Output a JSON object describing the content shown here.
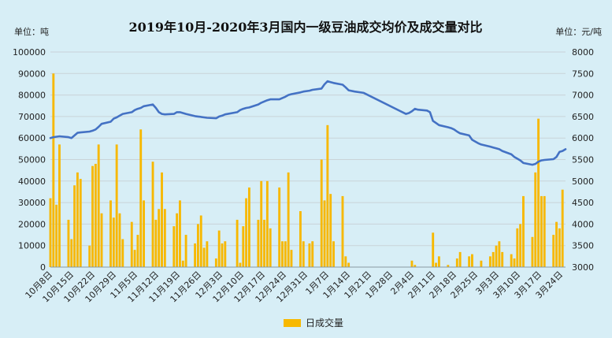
{
  "chart_data": {
    "type": "bar+line",
    "title": "2019年10月-2020年3月国内一级豆油成交均价及成交量对比",
    "left_unit": "单位：吨",
    "right_unit": "单位：元/吨",
    "left_axis": {
      "min": 0,
      "max": 100000,
      "ticks": [
        "0",
        "10000",
        "20000",
        "30000",
        "40000",
        "50000",
        "60000",
        "70000",
        "80000",
        "90000",
        "100000"
      ]
    },
    "right_axis": {
      "min": 3000,
      "max": 8000,
      "ticks": [
        "3000",
        "3500",
        "4000",
        "4500",
        "5000",
        "5500",
        "6000",
        "6500",
        "7000",
        "7500",
        "8000"
      ]
    },
    "x_start": "2019-10-08",
    "x_end": "2020-03-27",
    "x_ticks": [
      "10月8日",
      "10月15日",
      "10月22日",
      "10月29日",
      "11月5日",
      "11月12日",
      "11月19日",
      "11月26日",
      "12月3日",
      "12月10日",
      "12月17日",
      "12月24日",
      "12月31日",
      "1月7日",
      "1月14日",
      "1月21日",
      "1月28日",
      "2月4日",
      "2月11日",
      "2月18日",
      "2月25日",
      "3月3日",
      "3月10日",
      "3月17日",
      "3月24日"
    ],
    "grid": true,
    "legend_position": "bottom-center",
    "series": [
      {
        "name": "日成交量",
        "kind": "bar",
        "axis": "left",
        "color": "#f7b800",
        "points": [
          [
            "2019-10-08",
            32000
          ],
          [
            "2019-10-09",
            90000
          ],
          [
            "2019-10-10",
            29000
          ],
          [
            "2019-10-11",
            57000
          ],
          [
            "2019-10-14",
            22000
          ],
          [
            "2019-10-15",
            13000
          ],
          [
            "2019-10-16",
            38000
          ],
          [
            "2019-10-17",
            44000
          ],
          [
            "2019-10-18",
            41000
          ],
          [
            "2019-10-21",
            10000
          ],
          [
            "2019-10-22",
            47000
          ],
          [
            "2019-10-23",
            48000
          ],
          [
            "2019-10-24",
            57000
          ],
          [
            "2019-10-25",
            25000
          ],
          [
            "2019-10-28",
            31000
          ],
          [
            "2019-10-29",
            23000
          ],
          [
            "2019-10-30",
            57000
          ],
          [
            "2019-10-31",
            25000
          ],
          [
            "2019-11-01",
            13000
          ],
          [
            "2019-11-04",
            21000
          ],
          [
            "2019-11-05",
            8000
          ],
          [
            "2019-11-06",
            15000
          ],
          [
            "2019-11-07",
            64000
          ],
          [
            "2019-11-08",
            31000
          ],
          [
            "2019-11-11",
            49000
          ],
          [
            "2019-11-12",
            22000
          ],
          [
            "2019-11-13",
            27000
          ],
          [
            "2019-11-14",
            44000
          ],
          [
            "2019-11-15",
            27000
          ],
          [
            "2019-11-18",
            19000
          ],
          [
            "2019-11-19",
            25000
          ],
          [
            "2019-11-20",
            31000
          ],
          [
            "2019-11-21",
            3000
          ],
          [
            "2019-11-22",
            15000
          ],
          [
            "2019-11-25",
            11000
          ],
          [
            "2019-11-26",
            20000
          ],
          [
            "2019-11-27",
            24000
          ],
          [
            "2019-11-28",
            9000
          ],
          [
            "2019-11-29",
            12000
          ],
          [
            "2019-12-02",
            4000
          ],
          [
            "2019-12-03",
            17000
          ],
          [
            "2019-12-04",
            11000
          ],
          [
            "2019-12-05",
            12000
          ],
          [
            "2019-12-09",
            22000
          ],
          [
            "2019-12-10",
            2000
          ],
          [
            "2019-12-11",
            19000
          ],
          [
            "2019-12-12",
            32000
          ],
          [
            "2019-12-13",
            37000
          ],
          [
            "2019-12-16",
            22000
          ],
          [
            "2019-12-17",
            40000
          ],
          [
            "2019-12-18",
            22000
          ],
          [
            "2019-12-19",
            40000
          ],
          [
            "2019-12-20",
            18000
          ],
          [
            "2019-12-23",
            37000
          ],
          [
            "2019-12-24",
            12000
          ],
          [
            "2019-12-25",
            12000
          ],
          [
            "2019-12-26",
            44000
          ],
          [
            "2019-12-27",
            8000
          ],
          [
            "2019-12-30",
            26000
          ],
          [
            "2019-12-31",
            12000
          ],
          [
            "2020-01-02",
            11000
          ],
          [
            "2020-01-03",
            12000
          ],
          [
            "2020-01-06",
            50000
          ],
          [
            "2020-01-07",
            31000
          ],
          [
            "2020-01-08",
            66000
          ],
          [
            "2020-01-09",
            34000
          ],
          [
            "2020-01-10",
            12000
          ],
          [
            "2020-01-13",
            33000
          ],
          [
            "2020-01-14",
            5000
          ],
          [
            "2020-01-15",
            2000
          ],
          [
            "2020-02-05",
            3000
          ],
          [
            "2020-02-06",
            1000
          ],
          [
            "2020-02-12",
            16000
          ],
          [
            "2020-02-13",
            2000
          ],
          [
            "2020-02-14",
            5000
          ],
          [
            "2020-02-17",
            1000
          ],
          [
            "2020-02-20",
            4000
          ],
          [
            "2020-02-21",
            7000
          ],
          [
            "2020-02-24",
            5000
          ],
          [
            "2020-02-25",
            6000
          ],
          [
            "2020-02-28",
            3000
          ],
          [
            "2020-03-02",
            5000
          ],
          [
            "2020-03-03",
            7000
          ],
          [
            "2020-03-04",
            10000
          ],
          [
            "2020-03-05",
            12000
          ],
          [
            "2020-03-06",
            7000
          ],
          [
            "2020-03-09",
            6000
          ],
          [
            "2020-03-10",
            4000
          ],
          [
            "2020-03-11",
            18000
          ],
          [
            "2020-03-12",
            20000
          ],
          [
            "2020-03-13",
            33000
          ],
          [
            "2020-03-16",
            14000
          ],
          [
            "2020-03-17",
            44000
          ],
          [
            "2020-03-18",
            69000
          ],
          [
            "2020-03-19",
            33000
          ],
          [
            "2020-03-20",
            33000
          ],
          [
            "2020-03-23",
            15000
          ],
          [
            "2020-03-24",
            21000
          ],
          [
            "2020-03-25",
            18000
          ],
          [
            "2020-03-26",
            36000
          ]
        ]
      },
      {
        "kind": "line",
        "axis": "right",
        "color": "#4472c4",
        "points": [
          [
            "2019-10-08",
            6000
          ],
          [
            "2019-10-09",
            6020
          ],
          [
            "2019-10-11",
            6040
          ],
          [
            "2019-10-14",
            6020
          ],
          [
            "2019-10-15",
            6000
          ],
          [
            "2019-10-16",
            6060
          ],
          [
            "2019-10-17",
            6120
          ],
          [
            "2019-10-18",
            6130
          ],
          [
            "2019-10-21",
            6150
          ],
          [
            "2019-10-22",
            6170
          ],
          [
            "2019-10-23",
            6200
          ],
          [
            "2019-10-24",
            6260
          ],
          [
            "2019-10-25",
            6330
          ],
          [
            "2019-10-28",
            6380
          ],
          [
            "2019-10-29",
            6450
          ],
          [
            "2019-10-30",
            6480
          ],
          [
            "2019-10-31",
            6520
          ],
          [
            "2019-11-01",
            6560
          ],
          [
            "2019-11-04",
            6600
          ],
          [
            "2019-11-05",
            6650
          ],
          [
            "2019-11-06",
            6680
          ],
          [
            "2019-11-07",
            6700
          ],
          [
            "2019-11-08",
            6740
          ],
          [
            "2019-11-11",
            6780
          ],
          [
            "2019-11-12",
            6700
          ],
          [
            "2019-11-13",
            6600
          ],
          [
            "2019-11-14",
            6560
          ],
          [
            "2019-11-15",
            6550
          ],
          [
            "2019-11-18",
            6560
          ],
          [
            "2019-11-19",
            6600
          ],
          [
            "2019-11-20",
            6600
          ],
          [
            "2019-11-21",
            6580
          ],
          [
            "2019-11-22",
            6560
          ],
          [
            "2019-11-25",
            6510
          ],
          [
            "2019-11-26",
            6500
          ],
          [
            "2019-11-27",
            6490
          ],
          [
            "2019-11-28",
            6480
          ],
          [
            "2019-11-29",
            6470
          ],
          [
            "2019-12-02",
            6460
          ],
          [
            "2019-12-03",
            6500
          ],
          [
            "2019-12-04",
            6520
          ],
          [
            "2019-12-05",
            6550
          ],
          [
            "2019-12-09",
            6600
          ],
          [
            "2019-12-10",
            6650
          ],
          [
            "2019-12-11",
            6680
          ],
          [
            "2019-12-12",
            6700
          ],
          [
            "2019-12-13",
            6710
          ],
          [
            "2019-12-16",
            6780
          ],
          [
            "2019-12-17",
            6820
          ],
          [
            "2019-12-18",
            6850
          ],
          [
            "2019-12-19",
            6880
          ],
          [
            "2019-12-20",
            6900
          ],
          [
            "2019-12-23",
            6900
          ],
          [
            "2019-12-24",
            6930
          ],
          [
            "2019-12-25",
            6960
          ],
          [
            "2019-12-26",
            7000
          ],
          [
            "2019-12-27",
            7020
          ],
          [
            "2019-12-30",
            7060
          ],
          [
            "2019-12-31",
            7080
          ],
          [
            "2020-01-02",
            7100
          ],
          [
            "2020-01-03",
            7120
          ],
          [
            "2020-01-06",
            7150
          ],
          [
            "2020-01-07",
            7250
          ],
          [
            "2020-01-08",
            7320
          ],
          [
            "2020-01-09",
            7300
          ],
          [
            "2020-01-10",
            7280
          ],
          [
            "2020-01-13",
            7240
          ],
          [
            "2020-01-14",
            7180
          ],
          [
            "2020-01-15",
            7110
          ],
          [
            "2020-01-17",
            7080
          ],
          [
            "2020-01-20",
            7050
          ],
          [
            "2020-02-03",
            6560
          ],
          [
            "2020-02-04",
            6580
          ],
          [
            "2020-02-05",
            6620
          ],
          [
            "2020-02-06",
            6680
          ],
          [
            "2020-02-07",
            6660
          ],
          [
            "2020-02-10",
            6640
          ],
          [
            "2020-02-11",
            6600
          ],
          [
            "2020-02-12",
            6400
          ],
          [
            "2020-02-13",
            6350
          ],
          [
            "2020-02-14",
            6300
          ],
          [
            "2020-02-17",
            6250
          ],
          [
            "2020-02-18",
            6230
          ],
          [
            "2020-02-19",
            6200
          ],
          [
            "2020-02-20",
            6150
          ],
          [
            "2020-02-21",
            6110
          ],
          [
            "2020-02-24",
            6060
          ],
          [
            "2020-02-25",
            5960
          ],
          [
            "2020-02-26",
            5920
          ],
          [
            "2020-02-27",
            5880
          ],
          [
            "2020-02-28",
            5850
          ],
          [
            "2020-03-02",
            5800
          ],
          [
            "2020-03-03",
            5780
          ],
          [
            "2020-03-04",
            5760
          ],
          [
            "2020-03-05",
            5740
          ],
          [
            "2020-03-06",
            5700
          ],
          [
            "2020-03-09",
            5620
          ],
          [
            "2020-03-10",
            5560
          ],
          [
            "2020-03-11",
            5520
          ],
          [
            "2020-03-12",
            5480
          ],
          [
            "2020-03-13",
            5420
          ],
          [
            "2020-03-16",
            5380
          ],
          [
            "2020-03-17",
            5400
          ],
          [
            "2020-03-18",
            5450
          ],
          [
            "2020-03-19",
            5480
          ],
          [
            "2020-03-20",
            5490
          ],
          [
            "2020-03-23",
            5510
          ],
          [
            "2020-03-24",
            5560
          ],
          [
            "2020-03-25",
            5680
          ],
          [
            "2020-03-26",
            5700
          ],
          [
            "2020-03-27",
            5740
          ]
        ]
      }
    ]
  }
}
